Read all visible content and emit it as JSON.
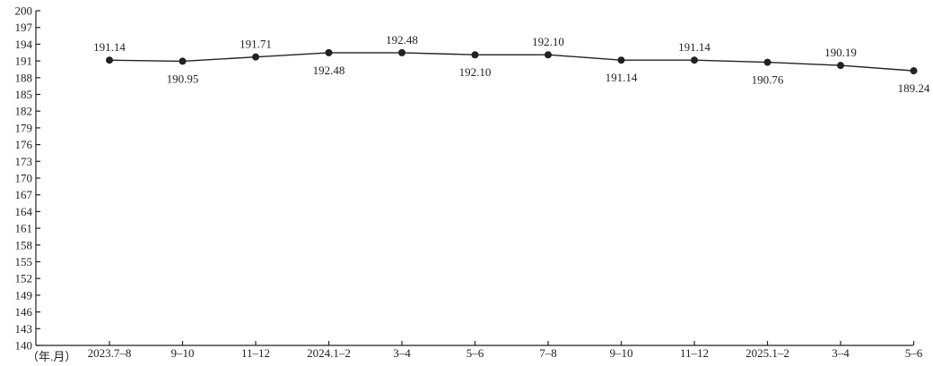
{
  "chart_data": {
    "type": "line",
    "x_unit": "（年.月）",
    "categories": [
      "2023.7–8",
      "9–10",
      "11–12",
      "2024.1–2",
      "3–4",
      "5–6",
      "7–8",
      "9–10",
      "11–12",
      "2025.1–2",
      "3–4",
      "5–6"
    ],
    "series": [
      {
        "values": [
          191.14,
          190.95,
          191.71,
          192.48,
          192.48,
          192.1,
          192.1,
          191.14,
          191.14,
          190.76,
          190.19,
          189.24
        ],
        "labels": [
          "191.14",
          "190.95",
          "191.71",
          "192.48",
          "192.48",
          "192.10",
          "192.10",
          "191.14",
          "191.14",
          "190.76",
          "190.19",
          "189.24"
        ]
      }
    ],
    "ylim": [
      140,
      200
    ],
    "yticks": [
      140,
      143,
      146,
      149,
      152,
      155,
      158,
      161,
      164,
      167,
      170,
      173,
      176,
      179,
      182,
      185,
      188,
      191,
      194,
      197,
      200
    ],
    "grid": false,
    "legend": "none",
    "color": "#222222"
  }
}
